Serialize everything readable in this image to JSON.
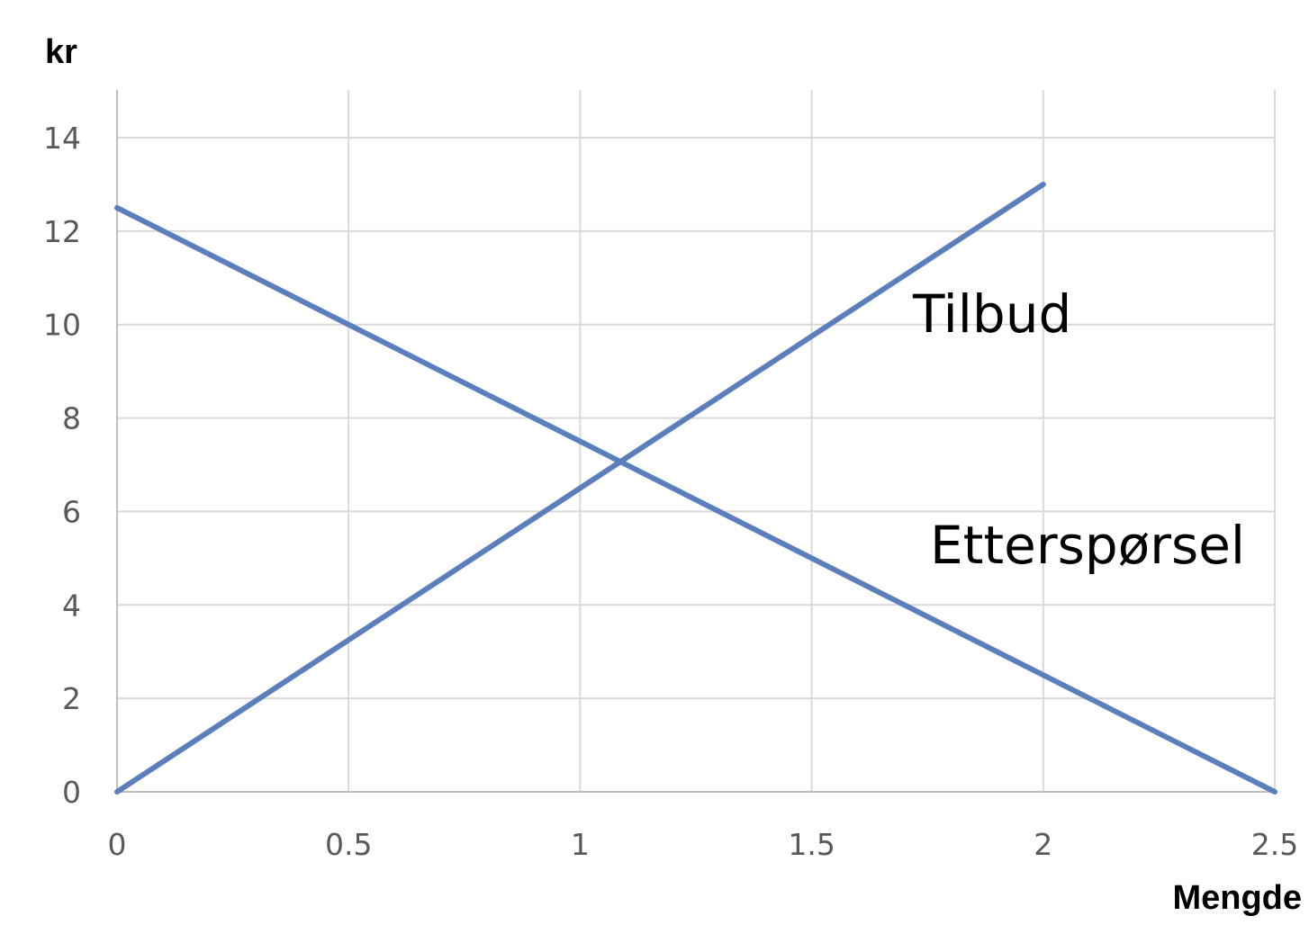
{
  "chart_data": {
    "type": "line",
    "ylabel": "kr",
    "xlabel": "Mengde",
    "xlim": [
      0,
      2.5
    ],
    "ylim": [
      0,
      14
    ],
    "x_ticks": [
      "0",
      "0.5",
      "1",
      "1.5",
      "2",
      "2.5"
    ],
    "y_ticks": [
      "0",
      "2",
      "4",
      "6",
      "8",
      "10",
      "12",
      "14"
    ],
    "grid": true,
    "line_color": "#5b7fbd",
    "series": [
      {
        "name": "Tilbud",
        "x": [
          0,
          2
        ],
        "y": [
          0,
          13
        ]
      },
      {
        "name": "Etterspørsel",
        "x": [
          0,
          2.5
        ],
        "y": [
          12.5,
          0
        ]
      }
    ]
  }
}
